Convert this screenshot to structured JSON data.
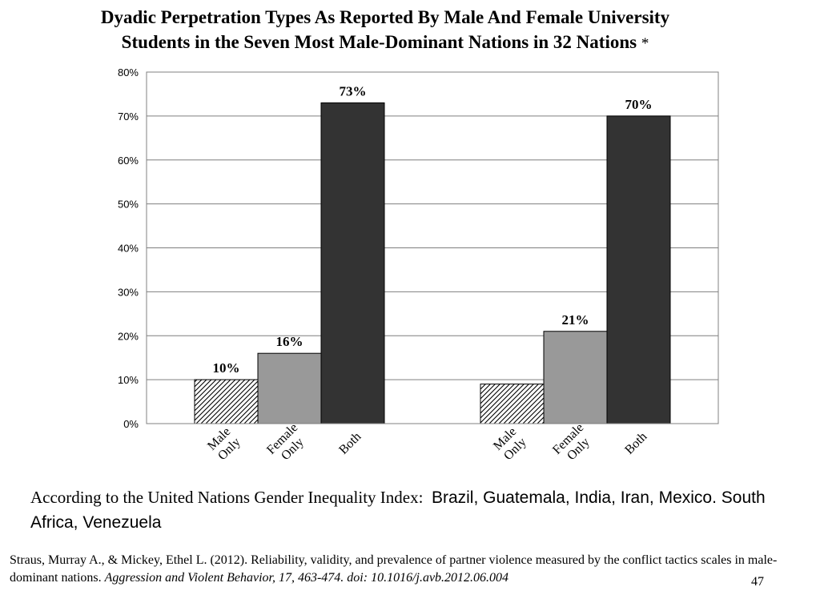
{
  "slide": {
    "title_line1": "Dyadic Perpetration Types As Reported By Male And Female University",
    "title_line2": "Students in the Seven Most Male-Dominant Nations in 32 Nations",
    "title_star": "*",
    "source_prefix": "According to the United Nations Gender Inequality Index:",
    "source_countries": "Brazil, Guatemala, India, Iran, Mexico. South Africa, Venezuela",
    "citation_main": "Straus, Murray A., & Mickey, Ethel L. (2012). Reliability, validity, and prevalence of partner violence measured by the conflict tactics scales in male-dominant nations.",
    "citation_journal": "Aggression and Violent Behavior, 17, 463-474. doi: 10.1016/j.avb.2012.06.004",
    "page_number": "47"
  },
  "chart_data": {
    "type": "bar",
    "groups": [
      "",
      ""
    ],
    "categories": [
      "Male Only",
      "Female Only",
      "Both"
    ],
    "series_values": [
      [
        10,
        16,
        73
      ],
      [
        9,
        21,
        70
      ]
    ],
    "data_labels": [
      [
        "10%",
        "16%",
        "73%"
      ],
      [
        "",
        "21%",
        "70%"
      ]
    ],
    "category_label_lines": [
      [
        "Male",
        "Only"
      ],
      [
        "Female",
        "Only"
      ],
      [
        "Both"
      ]
    ],
    "yticks": [
      "0%",
      "10%",
      "20%",
      "30%",
      "40%",
      "50%",
      "60%",
      "70%",
      "80%"
    ],
    "ylim": [
      0,
      80
    ],
    "grid": true,
    "bar_fills": [
      "hatched",
      "#999999",
      "#333333"
    ]
  }
}
